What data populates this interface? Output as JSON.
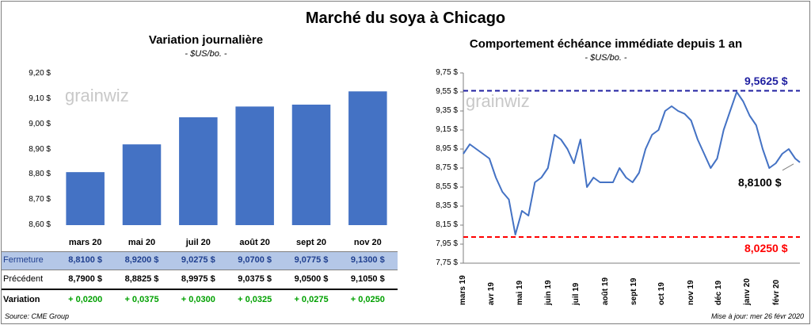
{
  "title": "Marché du soya à Chicago",
  "watermark": "grainwiz",
  "left_chart": {
    "subtitle": "Variation journalière",
    "unit": "- $US/bo. -",
    "y_ticks": [
      "9,20 $",
      "9,10 $",
      "9,00 $",
      "8,90 $",
      "8,80 $",
      "8,70 $",
      "8,60 $"
    ],
    "bar_color": "#4472c4"
  },
  "table": {
    "rows": [
      {
        "label": "Fermeture",
        "values": [
          "8,8100  $",
          "8,9200  $",
          "9,0275  $",
          "9,0700  $",
          "9,0775  $",
          "9,1300  $"
        ]
      },
      {
        "label": "Précédent",
        "values": [
          "8,7900  $",
          "8,8825  $",
          "8,9975  $",
          "9,0375  $",
          "9,0500  $",
          "9,1050  $"
        ]
      },
      {
        "label": "Variation",
        "values": [
          "+ 0,0200",
          "+ 0,0375",
          "+ 0,0300",
          "+ 0,0325",
          "+ 0,0275",
          "+ 0,0250"
        ]
      }
    ]
  },
  "right_chart": {
    "subtitle": "Comportement  échéance immédiate depuis 1 an",
    "unit": "- $US/bo. -",
    "y_ticks": [
      "9,75 $",
      "9,55 $",
      "9,35 $",
      "9,15 $",
      "8,95 $",
      "8,75 $",
      "8,55 $",
      "8,35 $",
      "8,15 $",
      "7,95 $",
      "7,75 $"
    ],
    "x_labels": [
      "mars 19",
      "avr 19",
      "mai 19",
      "juin 19",
      "juil 19",
      "août 19",
      "sept 19",
      "oct 19",
      "nov 19",
      "déc 19",
      "janv 20",
      "févr 20"
    ],
    "high_label": "9,5625  $",
    "low_label": "8,0250  $",
    "last_label": "8,8100 $",
    "line_color": "#4472c4",
    "high_color": "#1f1fa0",
    "low_color": "#ff0000"
  },
  "footer": {
    "source": "Source: CME Group",
    "update": "Mise à jour: mer 26 févr 2020"
  },
  "chart_data": [
    {
      "type": "bar",
      "title": "Variation journalière",
      "ylabel": "- $US/bo. -",
      "categories": [
        "mars 20",
        "mai 20",
        "juil 20",
        "août 20",
        "sept 20",
        "nov 20"
      ],
      "values": [
        8.81,
        8.92,
        9.0275,
        9.07,
        9.0775,
        9.13
      ],
      "ylim": [
        8.6,
        9.2
      ],
      "grid": false
    },
    {
      "type": "line",
      "title": "Comportement  échéance immédiate depuis 1 an",
      "ylabel": "- $US/bo. -",
      "ylim": [
        7.75,
        9.75
      ],
      "x": [
        "2019-03-01",
        "2019-03-08",
        "2019-03-15",
        "2019-03-22",
        "2019-03-29",
        "2019-04-05",
        "2019-04-12",
        "2019-04-19",
        "2019-04-26",
        "2019-05-03",
        "2019-05-10",
        "2019-05-17",
        "2019-05-24",
        "2019-05-31",
        "2019-06-07",
        "2019-06-14",
        "2019-06-21",
        "2019-06-28",
        "2019-07-05",
        "2019-07-12",
        "2019-07-19",
        "2019-07-26",
        "2019-08-02",
        "2019-08-09",
        "2019-08-16",
        "2019-08-23",
        "2019-08-30",
        "2019-09-06",
        "2019-09-13",
        "2019-09-20",
        "2019-09-27",
        "2019-10-04",
        "2019-10-11",
        "2019-10-18",
        "2019-10-25",
        "2019-11-01",
        "2019-11-08",
        "2019-11-15",
        "2019-11-22",
        "2019-11-29",
        "2019-12-06",
        "2019-12-13",
        "2019-12-20",
        "2019-12-27",
        "2020-01-03",
        "2020-01-10",
        "2020-01-17",
        "2020-01-24",
        "2020-01-31",
        "2020-02-07",
        "2020-02-14",
        "2020-02-21",
        "2020-02-26"
      ],
      "series": [
        {
          "values": [
            8.9,
            9.0,
            8.95,
            8.9,
            8.85,
            8.65,
            8.5,
            8.42,
            8.05,
            8.3,
            8.25,
            8.6,
            8.65,
            8.75,
            9.1,
            9.05,
            8.95,
            8.8,
            9.05,
            8.55,
            8.65,
            8.6,
            8.6,
            8.6,
            8.75,
            8.65,
            8.6,
            8.7,
            8.95,
            9.1,
            9.15,
            9.35,
            9.4,
            9.35,
            9.32,
            9.25,
            9.05,
            8.9,
            8.75,
            8.85,
            9.15,
            9.35,
            9.55,
            9.45,
            9.3,
            9.2,
            8.95,
            8.75,
            8.8,
            8.9,
            8.95,
            8.85,
            8.81
          ]
        }
      ],
      "annotations": [
        {
          "type": "hline",
          "value": 9.5625,
          "label": "9,5625  $"
        },
        {
          "type": "hline",
          "value": 8.025,
          "label": "8,0250  $"
        },
        {
          "type": "point",
          "value": 8.81,
          "label": "8,8100 $"
        }
      ]
    }
  ]
}
